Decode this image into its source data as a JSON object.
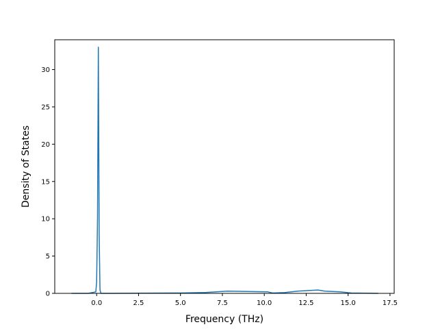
{
  "chart_data": {
    "type": "line",
    "title": "",
    "xlabel": "Frequency (THz)",
    "ylabel": "Density of States",
    "xlim": [
      -2.5,
      17.75
    ],
    "ylim": [
      0,
      34
    ],
    "xticks": [
      0.0,
      2.5,
      5.0,
      7.5,
      10.0,
      12.5,
      15.0,
      17.5
    ],
    "xtick_labels": [
      "0.0",
      "2.5",
      "5.0",
      "7.5",
      "10.0",
      "12.5",
      "15.0",
      "17.5"
    ],
    "yticks": [
      0,
      5,
      10,
      15,
      20,
      25,
      30
    ],
    "ytick_labels": [
      "0",
      "5",
      "10",
      "15",
      "20",
      "25",
      "30"
    ],
    "grid": false,
    "color": "#1f77b4",
    "series": [
      {
        "x": [
          -1.5,
          -0.5,
          -0.05,
          0.0,
          0.05,
          0.1,
          0.15,
          0.2,
          0.25,
          1.0,
          2.5,
          5.0,
          6.5,
          7.8,
          9.0,
          10.2,
          10.5,
          11.2,
          12.0,
          13.2,
          13.6,
          14.5,
          15.2,
          16.0,
          16.8
        ],
        "y": [
          0,
          0,
          0.2,
          1.5,
          10.0,
          33.0,
          8.0,
          0.5,
          0.0,
          0.0,
          0.02,
          0.05,
          0.12,
          0.3,
          0.25,
          0.2,
          0.05,
          0.1,
          0.3,
          0.45,
          0.3,
          0.2,
          0.05,
          0.02,
          0.0
        ]
      }
    ]
  }
}
